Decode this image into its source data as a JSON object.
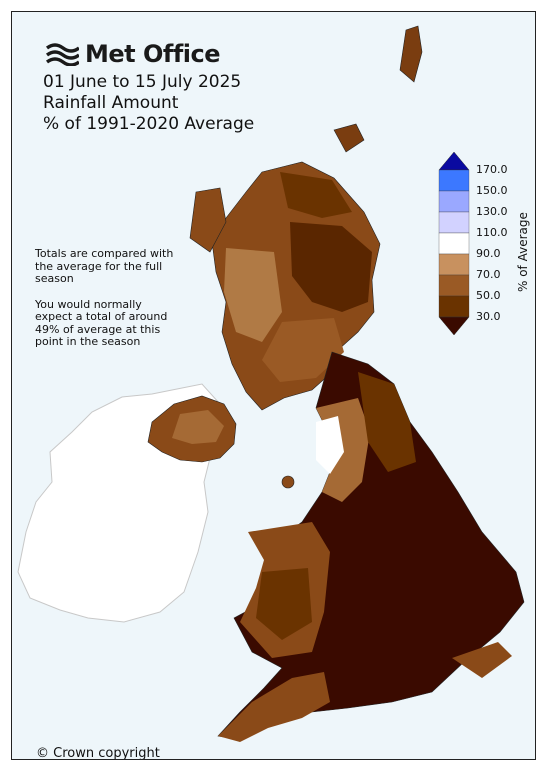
{
  "brand": {
    "name": "Met Office"
  },
  "title_lines": [
    "01 June to 15 July 2025",
    "Rainfall Amount",
    "% of 1991-2020 Average"
  ],
  "note": {
    "paragraph1": "Totals are compared with the average for the full season",
    "paragraph2": "You would normally expect a total of around 49% of average at this point in the season"
  },
  "legend": {
    "title": "% of Average",
    "ticks": [
      "170.0",
      "150.0",
      "130.0",
      "110.0",
      "90.0",
      "70.0",
      "50.0",
      "30.0"
    ],
    "colors": [
      "#0a0aa0",
      "#3c78ff",
      "#9aa8ff",
      "#d2d2ff",
      "#ffffff",
      "#c8915f",
      "#9a5a25",
      "#6a3300",
      "#3a0a00"
    ]
  },
  "copyright": "© Crown copyright",
  "colors": {
    "background": "#eef6fa",
    "ireland": "#ffffff"
  }
}
